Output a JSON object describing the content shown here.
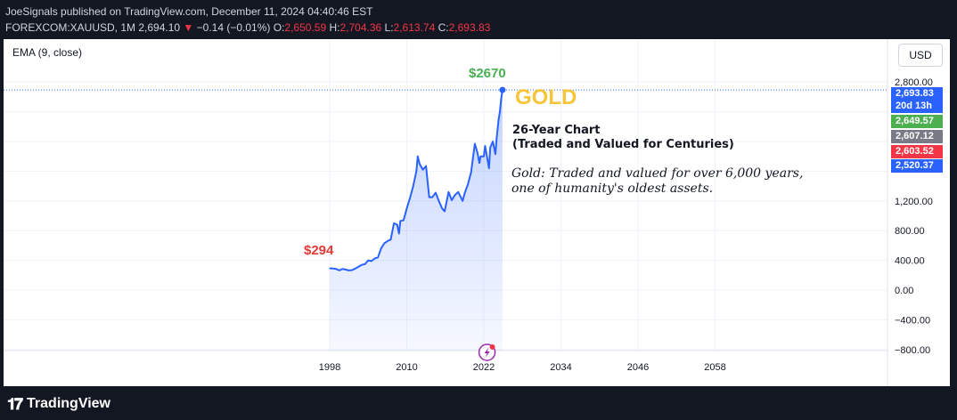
{
  "header": {
    "publisher_line": "JoeSignals published on TradingView.com, December 11, 2024 04:40:46 EST",
    "symbol": "FOREXCOM:XAUUSD, 1M",
    "last": "2,694.10",
    "arrow": "▼",
    "change": "−0.14 (−0.01%)",
    "o_label": "O:",
    "o_value": "2,650.59",
    "h_label": "H:",
    "h_value": "2,704.36",
    "l_label": "L:",
    "l_value": "2,613.74",
    "c_label": "C:",
    "c_value": "2,693.83"
  },
  "indicator_label": "EMA (9, close)",
  "currency_button": "USD",
  "price_tags": [
    {
      "text": "2,693.83",
      "color": "#2962ff"
    },
    {
      "text": "20d 13h",
      "color": "#2962ff"
    },
    {
      "text": "2,649.57",
      "color": "#4caf50"
    },
    {
      "text": "2,607.12",
      "color": "#787b86"
    },
    {
      "text": "2,603.52",
      "color": "#f23645"
    },
    {
      "text": "2,520.37",
      "color": "#2962ff"
    }
  ],
  "annotations": {
    "gold": "GOLD",
    "high": "$2670",
    "low": "$294",
    "title_line1": "26-Year Chart",
    "title_line2": "(Traded and Valued for Centuries)",
    "desc_line1": "Gold: Traded and valued for over 6,000 years,",
    "desc_line2": "one of humanity's oldest assets."
  },
  "footer": {
    "brand": "TradingView",
    "logo": "𝟏𝟕"
  },
  "chart_data": {
    "type": "area",
    "title": "",
    "xlabel": "",
    "ylabel": "",
    "x_ticks": [
      1998,
      2010,
      2022,
      2034,
      2046,
      2058
    ],
    "y_ticks": [
      2800,
      1200,
      800,
      400,
      0,
      -400,
      -800
    ],
    "y_tick_labels": [
      "2,800.00",
      "1,200.00",
      "800.00",
      "400.00",
      "0.00",
      "−400.00",
      "−800.00"
    ],
    "xlim": [
      1990,
      2080
    ],
    "ylim": [
      -1000,
      3000
    ],
    "grid": true,
    "series": [
      {
        "values": [
          [
            1998.0,
            294
          ],
          [
            1998.5,
            290
          ],
          [
            1999.0,
            285
          ],
          [
            1999.5,
            265
          ],
          [
            2000.0,
            285
          ],
          [
            2000.5,
            275
          ],
          [
            2001.0,
            265
          ],
          [
            2001.5,
            270
          ],
          [
            2002.0,
            290
          ],
          [
            2002.5,
            315
          ],
          [
            2003.0,
            340
          ],
          [
            2003.5,
            350
          ],
          [
            2004.0,
            400
          ],
          [
            2004.5,
            390
          ],
          [
            2005.0,
            425
          ],
          [
            2005.5,
            440
          ],
          [
            2006.0,
            560
          ],
          [
            2006.5,
            630
          ],
          [
            2007.0,
            660
          ],
          [
            2007.5,
            680
          ],
          [
            2008.0,
            900
          ],
          [
            2008.5,
            880
          ],
          [
            2008.8,
            760
          ],
          [
            2009.0,
            930
          ],
          [
            2009.5,
            940
          ],
          [
            2010.0,
            1100
          ],
          [
            2010.5,
            1240
          ],
          [
            2011.0,
            1400
          ],
          [
            2011.5,
            1600
          ],
          [
            2011.7,
            1800
          ],
          [
            2012.0,
            1700
          ],
          [
            2012.5,
            1620
          ],
          [
            2013.0,
            1670
          ],
          [
            2013.5,
            1250
          ],
          [
            2014.0,
            1250
          ],
          [
            2014.5,
            1310
          ],
          [
            2015.0,
            1200
          ],
          [
            2015.5,
            1100
          ],
          [
            2015.9,
            1060
          ],
          [
            2016.5,
            1320
          ],
          [
            2017.0,
            1210
          ],
          [
            2017.5,
            1280
          ],
          [
            2018.0,
            1320
          ],
          [
            2018.7,
            1200
          ],
          [
            2019.0,
            1300
          ],
          [
            2019.5,
            1420
          ],
          [
            2020.0,
            1580
          ],
          [
            2020.6,
            1970
          ],
          [
            2021.0,
            1850
          ],
          [
            2021.3,
            1710
          ],
          [
            2021.5,
            1800
          ],
          [
            2022.0,
            1800
          ],
          [
            2022.2,
            1940
          ],
          [
            2022.8,
            1640
          ],
          [
            2023.0,
            1920
          ],
          [
            2023.4,
            2000
          ],
          [
            2023.8,
            1830
          ],
          [
            2024.0,
            2050
          ],
          [
            2024.3,
            2300
          ],
          [
            2024.5,
            2400
          ],
          [
            2024.7,
            2580
          ],
          [
            2024.9,
            2690
          ]
        ]
      }
    ],
    "line_color": "#2962ff",
    "fill_color": "#2962ff",
    "last_price": 2693.83
  }
}
